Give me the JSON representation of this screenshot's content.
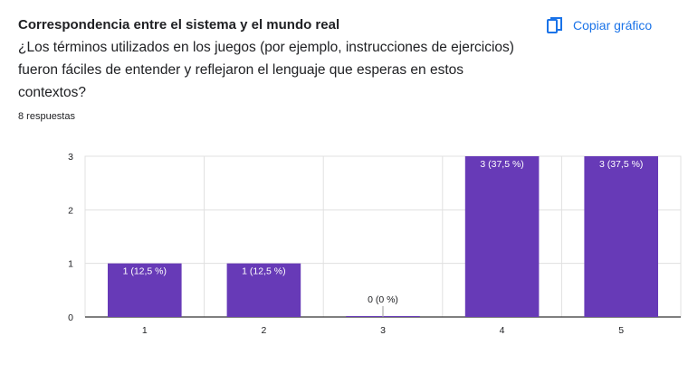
{
  "header": {
    "title": "Correspondencia entre el sistema y el mundo real",
    "question": "¿Los términos utilizados en los juegos (por ejemplo, instrucciones de ejercicios) fueron fáciles de entender y reflejaron el lenguaje que esperas en estos contextos?",
    "responses": "8 respuestas",
    "copy_label": "Copiar gráfico",
    "copy_icon": "copy-icon"
  },
  "colors": {
    "bar": "#673ab7",
    "accent": "#1a73e8",
    "grid": "#e0e0e0",
    "text": "#202124"
  },
  "chart_data": {
    "type": "bar",
    "categories": [
      "1",
      "2",
      "3",
      "4",
      "5"
    ],
    "values": [
      1,
      1,
      0,
      3,
      3
    ],
    "data_labels": [
      "1 (12,5 %)",
      "1 (12,5 %)",
      "0 (0 %)",
      "3 (37,5 %)",
      "3 (37,5 %)"
    ],
    "yticks": [
      "0",
      "1",
      "2",
      "3"
    ],
    "ylim": [
      0,
      3
    ],
    "grid": true
  }
}
